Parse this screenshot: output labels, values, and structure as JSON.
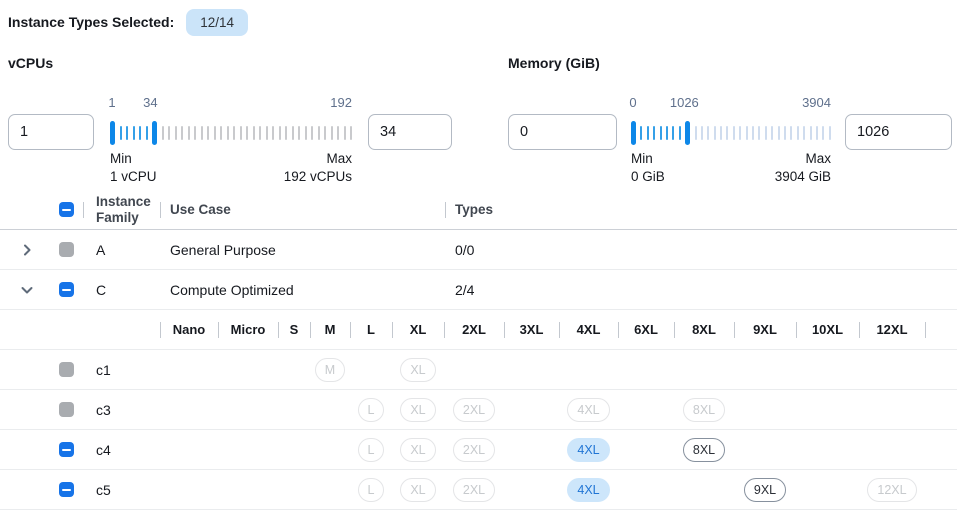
{
  "header": {
    "label": "Instance Types Selected:",
    "badge": "12/14"
  },
  "filters": {
    "vcpus": {
      "title": "vCPUs",
      "min_value": "1",
      "max_value": "34",
      "scale_labels": [
        "1",
        "34",
        "192"
      ],
      "min_caption_line1": "Min",
      "min_caption_line2": "1 vCPU",
      "max_caption_line1": "Max",
      "max_caption_line2": "192 vCPUs",
      "tick_count": 37,
      "selected_end_index": 6
    },
    "memory": {
      "title": "Memory (GiB)",
      "min_value": "0",
      "max_value": "1026",
      "scale_labels": [
        "0",
        "1026",
        "3904"
      ],
      "min_caption_line1": "Min",
      "min_caption_line2": "0 GiB",
      "max_caption_line1": "Max",
      "max_caption_line2": "3904 GiB",
      "tick_count": 31,
      "selected_end_index": 8
    }
  },
  "table": {
    "header": {
      "family": "Instance Family",
      "use_case": "Use Case",
      "types": "Types"
    },
    "select_all_state": "indeterminate",
    "size_header": [
      "Nano",
      "Micro",
      "S",
      "M",
      "L",
      "XL",
      "2XL",
      "3XL",
      "4XL",
      "6XL",
      "8XL",
      "9XL",
      "10XL",
      "12XL"
    ],
    "families": [
      {
        "family": "A",
        "use_case": "General Purpose",
        "types": "0/0",
        "expanded": false,
        "checkbox": "disabled",
        "instances": []
      },
      {
        "family": "C",
        "use_case": "Compute Optimized",
        "types": "2/4",
        "expanded": true,
        "checkbox": "indeterminate",
        "instances": [
          {
            "name": "c1",
            "checkbox": "disabled",
            "sizes": [
              {
                "label": "M",
                "state": "unavailable"
              },
              {
                "label": "XL",
                "state": "unavailable"
              }
            ]
          },
          {
            "name": "c3",
            "checkbox": "disabled",
            "sizes": [
              {
                "label": "L",
                "state": "unavailable"
              },
              {
                "label": "XL",
                "state": "unavailable"
              },
              {
                "label": "2XL",
                "state": "unavailable"
              },
              {
                "label": "4XL",
                "state": "unavailable"
              },
              {
                "label": "8XL",
                "state": "unavailable"
              }
            ]
          },
          {
            "name": "c4",
            "checkbox": "indeterminate",
            "sizes": [
              {
                "label": "L",
                "state": "unavailable"
              },
              {
                "label": "XL",
                "state": "unavailable"
              },
              {
                "label": "2XL",
                "state": "unavailable"
              },
              {
                "label": "4XL",
                "state": "selected"
              },
              {
                "label": "8XL",
                "state": "available"
              }
            ]
          },
          {
            "name": "c5",
            "checkbox": "indeterminate",
            "sizes": [
              {
                "label": "L",
                "state": "unavailable"
              },
              {
                "label": "XL",
                "state": "unavailable"
              },
              {
                "label": "2XL",
                "state": "unavailable"
              },
              {
                "label": "4XL",
                "state": "selected"
              },
              {
                "label": "9XL",
                "state": "available"
              },
              {
                "label": "12XL",
                "state": "unavailable"
              }
            ]
          }
        ]
      }
    ]
  },
  "colors": {
    "accent_blue": "#1774e8",
    "slider_handle_blue": "#0d87e8",
    "slider_range_blue": "#35a0e8",
    "vcpu_track_tick": "#c9cacd",
    "memory_track_tick": "#cfdcee",
    "badge_bg": "#cbe4f9",
    "pill_selected_bg": "#cde6fb",
    "pill_selected_text": "#1f74d4",
    "disabled_gray": "#a9acb0"
  }
}
